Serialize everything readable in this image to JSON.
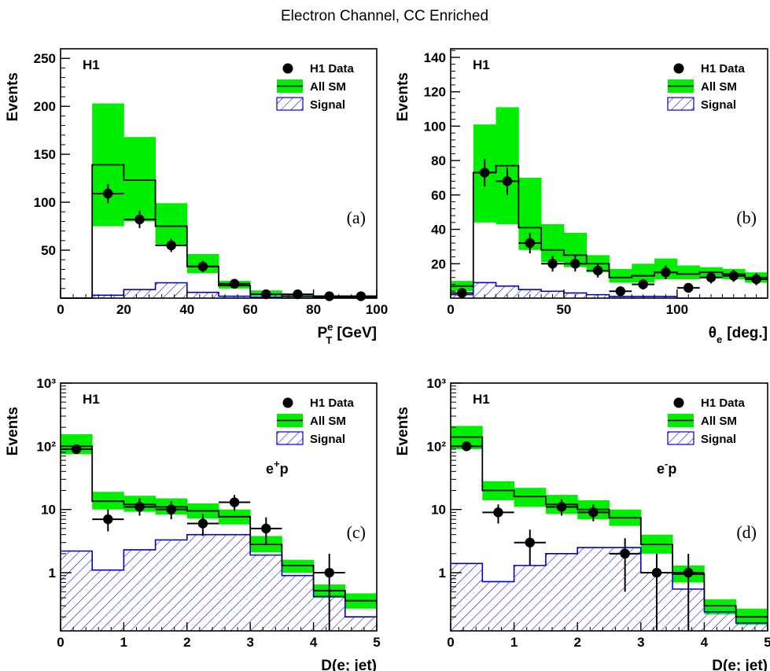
{
  "suptitle": "Electron Channel, CC Enriched",
  "colors": {
    "band": "#00ee00",
    "sm_line": "#000000",
    "signal": "#0000cc",
    "data": "#000000"
  },
  "chart_data": [
    {
      "type": "histogram",
      "panel": "(a)",
      "experiment": "H1",
      "xlabel": "P_T^e [GeV]",
      "xlabel_main": "P",
      "xlabel_sub": "T",
      "xlabel_sup": "e",
      "xlabel_unit": "[GeV]",
      "ylabel": "Events",
      "xlim": [
        0,
        100
      ],
      "ylim": [
        0,
        260
      ],
      "log": false,
      "xticks": [
        0,
        20,
        40,
        60,
        80,
        100
      ],
      "yticks": [
        50,
        100,
        150,
        200,
        250
      ],
      "legend": [
        "H1 Data",
        "All SM",
        "Signal"
      ],
      "legend_position": "top-right",
      "bin_edges": [
        0,
        10,
        20,
        30,
        40,
        50,
        60,
        70,
        80,
        90,
        100
      ],
      "sm": [
        0,
        139,
        123,
        75,
        33,
        13,
        4,
        2,
        1,
        1
      ],
      "band_low": [
        0,
        75,
        80,
        55,
        26,
        10,
        2,
        1,
        0,
        0
      ],
      "band_high": [
        0,
        203,
        168,
        99,
        46,
        18,
        8,
        3,
        2,
        1
      ],
      "signal": [
        0,
        3,
        9,
        16,
        6,
        2,
        1,
        0,
        0,
        0
      ],
      "data": [
        {
          "x": 15,
          "y": 109,
          "yerr": 10
        },
        {
          "x": 25,
          "y": 82,
          "yerr": 9
        },
        {
          "x": 35,
          "y": 55,
          "yerr": 7
        },
        {
          "x": 45,
          "y": 33,
          "yerr": 6
        },
        {
          "x": 55,
          "y": 15,
          "yerr": 4
        },
        {
          "x": 65,
          "y": 4,
          "yerr": 2
        },
        {
          "x": 75,
          "y": 4,
          "yerr": 2
        },
        {
          "x": 85,
          "y": 2,
          "yerr": 1.5
        },
        {
          "x": 95,
          "y": 2,
          "yerr": 1.5
        }
      ]
    },
    {
      "type": "histogram",
      "panel": "(b)",
      "experiment": "H1",
      "xlabel": "θe [deg.]",
      "xlabel_main": "θ",
      "xlabel_sub": "e",
      "xlabel_sup": "",
      "xlabel_unit": "[deg.]",
      "ylabel": "Events",
      "xlim": [
        0,
        140
      ],
      "ylim": [
        0,
        145
      ],
      "log": false,
      "xticks": [
        0,
        50,
        100
      ],
      "yticks": [
        20,
        40,
        60,
        80,
        100,
        120,
        140
      ],
      "legend": [
        "H1 Data",
        "All SM",
        "Signal"
      ],
      "legend_position": "top-right",
      "bin_edges": [
        0,
        10,
        20,
        30,
        40,
        50,
        60,
        70,
        80,
        90,
        100,
        110,
        120,
        130,
        140
      ],
      "sm": [
        7,
        73,
        77,
        41,
        28,
        25,
        20,
        12,
        13,
        15,
        14,
        15,
        14,
        12
      ],
      "band_low": [
        4,
        44,
        43,
        28,
        21,
        18,
        15,
        9,
        9,
        11,
        11,
        12,
        11,
        9
      ],
      "band_high": [
        10,
        101,
        111,
        70,
        43,
        38,
        25,
        17,
        20,
        23,
        19,
        18,
        17,
        15
      ],
      "signal": [
        2,
        9,
        7,
        5,
        4,
        3,
        2,
        1,
        1,
        1,
        0,
        0,
        0,
        0
      ],
      "data": [
        {
          "x": 5,
          "y": 3,
          "yerr": 2
        },
        {
          "x": 15,
          "y": 73,
          "yerr": 8
        },
        {
          "x": 25,
          "y": 68,
          "yerr": 8
        },
        {
          "x": 35,
          "y": 32,
          "yerr": 6
        },
        {
          "x": 45,
          "y": 20,
          "yerr": 4.5
        },
        {
          "x": 55,
          "y": 20,
          "yerr": 4.5
        },
        {
          "x": 65,
          "y": 16,
          "yerr": 4
        },
        {
          "x": 75,
          "y": 4,
          "yerr": 2
        },
        {
          "x": 85,
          "y": 8,
          "yerr": 3
        },
        {
          "x": 95,
          "y": 15,
          "yerr": 4
        },
        {
          "x": 105,
          "y": 6,
          "yerr": 2.5
        },
        {
          "x": 115,
          "y": 12,
          "yerr": 3.5
        },
        {
          "x": 125,
          "y": 13,
          "yerr": 3.5
        },
        {
          "x": 135,
          "y": 11,
          "yerr": 3.5
        }
      ]
    },
    {
      "type": "histogram",
      "panel": "(c)",
      "experiment": "H1",
      "process_main": "e",
      "process_sup": "+",
      "process_tail": "p",
      "xlabel": "D(e; jet)",
      "xlabel_main": "D(e; jet)",
      "xlabel_sub": "",
      "xlabel_sup": "",
      "xlabel_unit": "",
      "ylabel": "Events",
      "xlim": [
        0,
        5
      ],
      "ylim": [
        0.12,
        1000
      ],
      "log": true,
      "xticks": [
        0,
        1,
        2,
        3,
        4,
        5
      ],
      "yticks": [
        1,
        10,
        100,
        1000
      ],
      "ytick_labels": [
        "1",
        "10",
        "10²",
        "10³"
      ],
      "legend": [
        "H1 Data",
        "All SM",
        "Signal"
      ],
      "legend_position": "top-right",
      "bin_edges": [
        0,
        0.5,
        1,
        1.5,
        2,
        2.5,
        3,
        3.5,
        4,
        4.5,
        5
      ],
      "sm": [
        100,
        13.5,
        12,
        11,
        9.5,
        7.7,
        2.8,
        1.3,
        0.52,
        0.36
      ],
      "band_low": [
        75,
        10,
        9.2,
        8.3,
        7.2,
        5.8,
        2.1,
        1.0,
        0.4,
        0.27
      ],
      "band_high": [
        155,
        19,
        16.5,
        15,
        12.5,
        10,
        3.8,
        1.6,
        0.65,
        0.47
      ],
      "signal": [
        2.2,
        1.1,
        2.3,
        3.3,
        4.0,
        4.0,
        1.9,
        0.9,
        0.42,
        0.2
      ],
      "data": [
        {
          "x": 0.25,
          "y": 90,
          "ylo": 80,
          "yhi": 100,
          "xerr": 0.25
        },
        {
          "x": 0.75,
          "y": 7,
          "ylo": 4.5,
          "yhi": 10,
          "xerr": 0.25
        },
        {
          "x": 1.25,
          "y": 11,
          "ylo": 8,
          "yhi": 15,
          "xerr": 0.25
        },
        {
          "x": 1.75,
          "y": 10,
          "ylo": 7,
          "yhi": 13.5,
          "xerr": 0.25
        },
        {
          "x": 2.25,
          "y": 6,
          "ylo": 3.8,
          "yhi": 8.5,
          "xerr": 0.25
        },
        {
          "x": 2.75,
          "y": 13,
          "ylo": 9.5,
          "yhi": 17,
          "xerr": 0.25
        },
        {
          "x": 3.25,
          "y": 5,
          "ylo": 2.8,
          "yhi": 7.5,
          "xerr": 0.25
        },
        {
          "x": 4.25,
          "y": 1,
          "ylo": 0.12,
          "yhi": 2.0,
          "xerr": 0.25
        }
      ]
    },
    {
      "type": "histogram",
      "panel": "(d)",
      "experiment": "H1",
      "process_main": "e",
      "process_sup": "-",
      "process_tail": "p",
      "xlabel": "D(e; jet)",
      "xlabel_main": "D(e; jet)",
      "xlabel_sub": "",
      "xlabel_sup": "",
      "xlabel_unit": "",
      "ylabel": "Events",
      "xlim": [
        0,
        5
      ],
      "ylim": [
        0.12,
        1000
      ],
      "log": true,
      "xticks": [
        0,
        1,
        2,
        3,
        4,
        5
      ],
      "yticks": [
        1,
        10,
        100,
        1000
      ],
      "ytick_labels": [
        "1",
        "10",
        "10²",
        "10³"
      ],
      "legend": [
        "H1 Data",
        "All SM",
        "Signal"
      ],
      "legend_position": "top-right",
      "bin_edges": [
        0,
        0.5,
        1,
        1.5,
        2,
        2.5,
        3,
        3.5,
        4,
        4.5,
        5
      ],
      "sm": [
        140,
        20,
        16,
        12,
        10,
        7.4,
        2.8,
        0.95,
        0.3,
        0.2
      ],
      "band_low": [
        90,
        14,
        11,
        8.5,
        7,
        5.5,
        2.0,
        0.7,
        0.22,
        0.15
      ],
      "band_high": [
        210,
        28,
        22,
        17,
        14,
        10,
        4.0,
        1.3,
        0.38,
        0.27
      ],
      "signal": [
        1.4,
        0.72,
        1.3,
        2.0,
        2.5,
        2.5,
        1.0,
        0.55,
        0.24,
        0.16
      ],
      "data": [
        {
          "x": 0.25,
          "y": 100,
          "ylo": 90,
          "yhi": 110,
          "xerr": 0.25
        },
        {
          "x": 0.75,
          "y": 9,
          "ylo": 6,
          "yhi": 12,
          "xerr": 0.25
        },
        {
          "x": 1.25,
          "y": 3,
          "ylo": 1.3,
          "yhi": 4.8,
          "xerr": 0.25
        },
        {
          "x": 1.75,
          "y": 11,
          "ylo": 8,
          "yhi": 14.5,
          "xerr": 0.25
        },
        {
          "x": 2.25,
          "y": 9,
          "ylo": 6.5,
          "yhi": 12,
          "xerr": 0.25
        },
        {
          "x": 2.75,
          "y": 2,
          "ylo": 0.5,
          "yhi": 3.5,
          "xerr": 0.25
        },
        {
          "x": 3.25,
          "y": 1,
          "ylo": 0.12,
          "yhi": 2.0,
          "xerr": 0.25
        },
        {
          "x": 3.75,
          "y": 1,
          "ylo": 0.12,
          "yhi": 2.0,
          "xerr": 0.25
        }
      ]
    }
  ]
}
